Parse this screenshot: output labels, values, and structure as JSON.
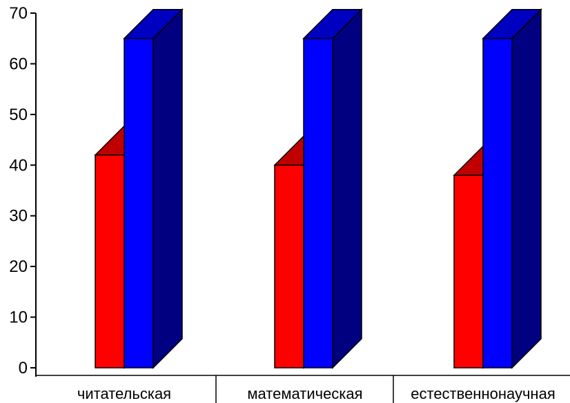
{
  "chart_data": {
    "type": "bar",
    "categories": [
      "читательская",
      "математическая",
      "естественнонаучная"
    ],
    "series": [
      {
        "values": [
          42,
          40,
          38
        ]
      },
      {
        "values": [
          65,
          65,
          65
        ]
      }
    ],
    "ylim": [
      0,
      70
    ],
    "yticks": [
      "0",
      "10",
      "20",
      "30",
      "40",
      "50",
      "60",
      "70"
    ],
    "grid": false,
    "legend": "none",
    "colors": {
      "series_front": [
        "#ff0000",
        "#0000ff"
      ],
      "series_side": [
        "#800000",
        "#000080"
      ],
      "series_top": [
        "#c00000",
        "#0000c0"
      ]
    }
  }
}
